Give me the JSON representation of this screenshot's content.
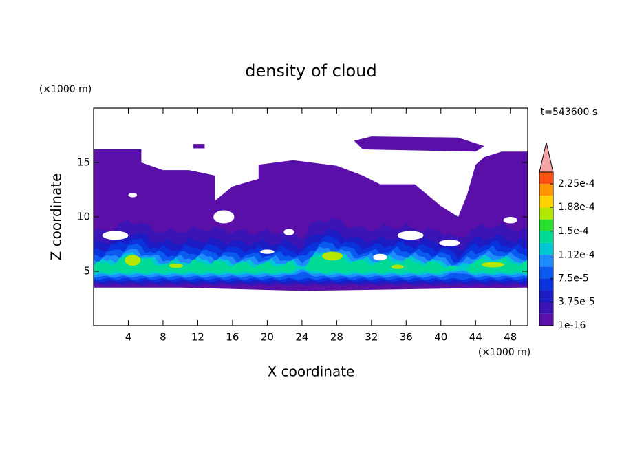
{
  "chart_data": {
    "type": "contour",
    "title": "density of cloud",
    "x_label": "X coordinate",
    "y_label": "Z coordinate",
    "x_unit": "(×1000 m)",
    "y_unit": "(×1000 m)",
    "annotation": "t=543600 s",
    "xlim": [
      0,
      50
    ],
    "ylim": [
      0,
      20
    ],
    "xticks": [
      4,
      8,
      12,
      16,
      20,
      24,
      28,
      32,
      36,
      40,
      44,
      48
    ],
    "yticks": [
      5,
      10,
      15
    ],
    "colorbar": {
      "lim": [
        0,
        0.00024375
      ],
      "ticks": [
        {
          "value": 1e-16,
          "label": "1e-16"
        },
        {
          "value": 3.75e-05,
          "label": "3.75e-5"
        },
        {
          "value": 7.5e-05,
          "label": "7.5e-5"
        },
        {
          "value": 0.000112,
          "label": "1.12e-4"
        },
        {
          "value": 0.00015,
          "label": "1.5e-4"
        },
        {
          "value": 0.000188,
          "label": "1.88e-4"
        },
        {
          "value": 0.000225,
          "label": "2.25e-4"
        }
      ],
      "colors": [
        "#5a10a8",
        "#3a14b4",
        "#1c1cc4",
        "#0a32dc",
        "#0a5af0",
        "#1e8cff",
        "#00c8d2",
        "#00dc96",
        "#28e030",
        "#b4e600",
        "#ffd200",
        "#ff9600",
        "#ff5014"
      ],
      "extend_color": "#f4a4a4"
    }
  }
}
